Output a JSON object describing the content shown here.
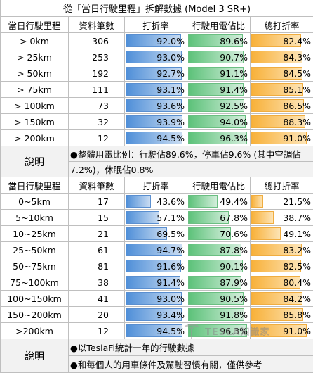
{
  "title": "從「當日行駛里程」拆解數據 (Model 3 SR+)",
  "headers": {
    "range": "當日行駛里程",
    "count": "資料筆數",
    "drive_rate": "打折率",
    "drive_share": "行駛用電佔比",
    "total_rate": "總打折率"
  },
  "table1": [
    {
      "range": "> 0km",
      "count": "306",
      "drive_rate": "92.0%",
      "drive_share": "89.6%",
      "total_rate": "82.4%"
    },
    {
      "range": "> 25km",
      "count": "253",
      "drive_rate": "93.0%",
      "drive_share": "90.7%",
      "total_rate": "84.3%"
    },
    {
      "range": "> 50km",
      "count": "192",
      "drive_rate": "92.7%",
      "drive_share": "91.1%",
      "total_rate": "84.5%"
    },
    {
      "range": "> 75km",
      "count": "111",
      "drive_rate": "93.1%",
      "drive_share": "91.4%",
      "total_rate": "85.1%"
    },
    {
      "range": "> 100km",
      "count": "73",
      "drive_rate": "93.6%",
      "drive_share": "92.5%",
      "total_rate": "86.5%"
    },
    {
      "range": "> 150km",
      "count": "32",
      "drive_rate": "93.9%",
      "drive_share": "94.0%",
      "total_rate": "88.3%"
    },
    {
      "range": "> 200km",
      "count": "12",
      "drive_rate": "94.5%",
      "drive_share": "96.3%",
      "total_rate": "91.0%"
    }
  ],
  "note1": {
    "label": "說明",
    "line1": "●整體用電比例：行駛佔89.6%，停車佔9.6% (其中空調佔",
    "line2": "7.2%)，休眠佔0.8%"
  },
  "table2": [
    {
      "range": "0~5km",
      "count": "17",
      "drive_rate": "43.6%",
      "drive_share": "49.4%",
      "total_rate": "21.5%"
    },
    {
      "range": "5~10km",
      "count": "15",
      "drive_rate": "57.1%",
      "drive_share": "67.8%",
      "total_rate": "38.7%"
    },
    {
      "range": "10~25km",
      "count": "21",
      "drive_rate": "69.5%",
      "drive_share": "70.6%",
      "total_rate": "49.1%"
    },
    {
      "range": "25~50km",
      "count": "61",
      "drive_rate": "94.7%",
      "drive_share": "87.8%",
      "total_rate": "83.2%"
    },
    {
      "range": "50~75km",
      "count": "81",
      "drive_rate": "91.6%",
      "drive_share": "90.1%",
      "total_rate": "82.5%"
    },
    {
      "range": "75~100km",
      "count": "38",
      "drive_rate": "91.4%",
      "drive_share": "87.9%",
      "total_rate": "80.4%"
    },
    {
      "range": "100~150km",
      "count": "41",
      "drive_rate": "93.0%",
      "drive_share": "90.5%",
      "total_rate": "84.2%"
    },
    {
      "range": "150~200km",
      "count": "20",
      "drive_rate": "93.4%",
      "drive_share": "91.8%",
      "total_rate": "85.8%"
    },
    {
      "range": ">200km",
      "count": "12",
      "drive_rate": "94.5%",
      "drive_share": "96.3%",
      "total_rate": "91.0%"
    }
  ],
  "note2": {
    "label": "說明",
    "line1": "●以TeslaFi統計一年的行駛數據",
    "line2": "●和每個人的用車條件及駕駛習慣有關，僅供參考"
  },
  "watermark": {
    "text": "TESLA知識家",
    "icon": "tesla-logo-icon"
  },
  "colors": {
    "drive_rate_bar": "#4f8fd8",
    "drive_share_bar": "#5dc27a",
    "total_rate_bar": "#f8b13a",
    "grid": "#bfbfbf",
    "note_bg": "#f2f2f2"
  }
}
